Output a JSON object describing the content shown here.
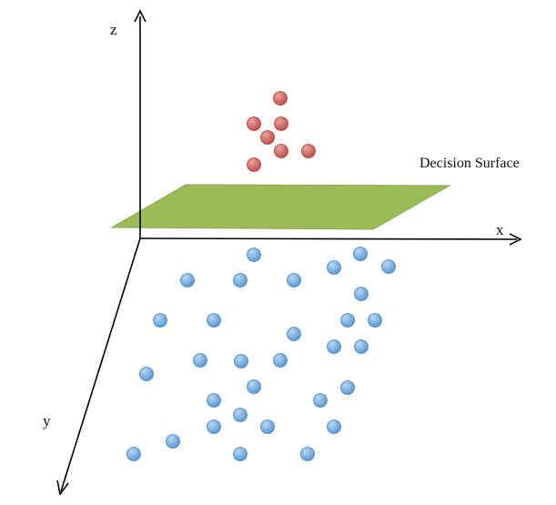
{
  "axes": {
    "x_label": "x",
    "y_label": "y",
    "z_label": "z"
  },
  "decision_surface": {
    "label": "Decision Surface",
    "fill_color": "#9bbb59",
    "edge_color": "#7f9a48"
  },
  "classes": {
    "above": {
      "color": "#c0504d",
      "highlight": "#e8a3a0",
      "count": 7
    },
    "below": {
      "color": "#5b9bd5",
      "highlight": "#b9d6f2",
      "count": 33
    }
  }
}
